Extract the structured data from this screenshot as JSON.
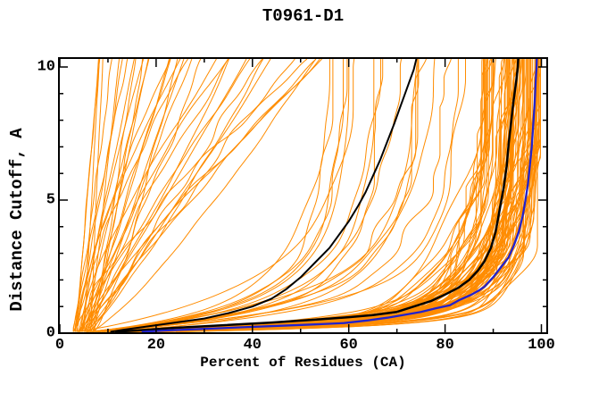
{
  "title": "T0961-D1",
  "chart_data": {
    "type": "line",
    "title": "T0961-D1",
    "xlabel": "Percent of Residues (CA)",
    "ylabel": "Distance Cutoff, A",
    "xlim": [
      0,
      100
    ],
    "ylim": [
      0,
      10
    ],
    "x_major_ticks": [
      0,
      20,
      40,
      60,
      80,
      100
    ],
    "x_minor_ticks": [
      10,
      30,
      50,
      70,
      90
    ],
    "y_major_ticks": [
      0,
      5,
      10
    ],
    "y_minor_ticks": [
      1,
      2,
      3,
      4,
      6,
      7,
      8,
      9
    ],
    "grid": false,
    "legend": false,
    "colors": {
      "ensemble": "#ff8c00",
      "reference_black": "#000000",
      "reference_blue": "#2222cc",
      "frame": "#000000",
      "background": "#ffffff",
      "text": "#000000"
    },
    "highlight_series": [
      {
        "name": "black-mid-curve",
        "color": "#000000",
        "width": 2,
        "points": [
          [
            10.5,
            0.05
          ],
          [
            13,
            0.12
          ],
          [
            18,
            0.25
          ],
          [
            24,
            0.4
          ],
          [
            30,
            0.55
          ],
          [
            35,
            0.75
          ],
          [
            40,
            1.0
          ],
          [
            44,
            1.3
          ],
          [
            47,
            1.65
          ],
          [
            50,
            2.1
          ],
          [
            53,
            2.65
          ],
          [
            56,
            3.2
          ],
          [
            58,
            3.7
          ],
          [
            60,
            4.2
          ],
          [
            62,
            4.8
          ],
          [
            63.5,
            5.3
          ],
          [
            65,
            5.9
          ],
          [
            66.5,
            6.5
          ],
          [
            68,
            7.2
          ],
          [
            69.5,
            7.9
          ],
          [
            70.5,
            8.4
          ],
          [
            71.5,
            8.9
          ],
          [
            72.5,
            9.4
          ],
          [
            73.5,
            9.9
          ],
          [
            74.1,
            10.35
          ]
        ]
      },
      {
        "name": "black-right-curve",
        "color": "#000000",
        "width": 2.5,
        "points": [
          [
            11.5,
            0.05
          ],
          [
            16,
            0.1
          ],
          [
            24,
            0.2
          ],
          [
            34,
            0.3
          ],
          [
            44,
            0.4
          ],
          [
            54,
            0.52
          ],
          [
            60,
            0.6
          ],
          [
            65,
            0.68
          ],
          [
            70,
            0.8
          ],
          [
            73.5,
            1.0
          ],
          [
            77,
            1.2
          ],
          [
            80,
            1.45
          ],
          [
            82.7,
            1.7
          ],
          [
            85,
            2.0
          ],
          [
            86.8,
            2.35
          ],
          [
            88.2,
            2.7
          ],
          [
            89.5,
            3.2
          ],
          [
            90.5,
            3.8
          ],
          [
            91.4,
            4.7
          ],
          [
            92.2,
            5.5
          ],
          [
            92.8,
            6.3
          ],
          [
            93.2,
            7.1
          ],
          [
            93.7,
            7.9
          ],
          [
            94.2,
            8.7
          ],
          [
            94.8,
            9.5
          ],
          [
            95.1,
            10.0
          ],
          [
            95.2,
            10.35
          ]
        ]
      },
      {
        "name": "blue-curve",
        "color": "#2222cc",
        "width": 2.3,
        "points": [
          [
            17,
            0.05
          ],
          [
            22,
            0.1
          ],
          [
            30,
            0.16
          ],
          [
            38,
            0.22
          ],
          [
            46,
            0.28
          ],
          [
            53,
            0.33
          ],
          [
            59,
            0.38
          ],
          [
            64,
            0.48
          ],
          [
            68,
            0.58
          ],
          [
            71,
            0.67
          ],
          [
            75,
            0.8
          ],
          [
            78,
            0.93
          ],
          [
            81,
            1.05
          ],
          [
            83,
            1.25
          ],
          [
            85.5,
            1.45
          ],
          [
            87,
            1.6
          ],
          [
            88.2,
            1.75
          ],
          [
            90,
            2.1
          ],
          [
            91.5,
            2.45
          ],
          [
            93.2,
            2.85
          ],
          [
            94.3,
            3.3
          ],
          [
            95.3,
            3.8
          ],
          [
            96.1,
            4.4
          ],
          [
            96.6,
            4.9
          ],
          [
            97.2,
            5.6
          ],
          [
            97.6,
            6.3
          ],
          [
            98,
            7.0
          ],
          [
            98.3,
            7.8
          ],
          [
            98.6,
            8.6
          ],
          [
            98.8,
            9.4
          ],
          [
            99,
            10.0
          ],
          [
            99.05,
            10.35
          ]
        ]
      }
    ],
    "ensemble": {
      "name": "orange-model-curves",
      "color": "#ff8c00",
      "width": 1,
      "seed": 42,
      "count": 141,
      "families": [
        {
          "type": "saturating",
          "count": 85,
          "top_percent": [
            87,
            99.6
          ],
          "top_bias": 1.8,
          "start_percent": [
            3,
            9
          ],
          "k_fast": [
            2.2,
            4.5
          ],
          "k_slow": [
            0.3,
            0.7
          ],
          "fast_weight": [
            0.6,
            0.85
          ]
        },
        {
          "type": "saturating",
          "count": 18,
          "top_percent": [
            56,
            86
          ],
          "top_bias": 1.0,
          "start_percent": [
            3,
            8
          ],
          "k_fast": [
            0.8,
            1.8
          ],
          "k_slow": [
            0.2,
            0.45
          ],
          "fast_weight": [
            0.4,
            0.7
          ]
        },
        {
          "type": "power",
          "count": 38,
          "top_percent": [
            8,
            55
          ],
          "top_bias": 1.7,
          "start_percent": [
            2.5,
            7
          ],
          "gamma": [
            0.7,
            1.4
          ]
        }
      ]
    }
  }
}
